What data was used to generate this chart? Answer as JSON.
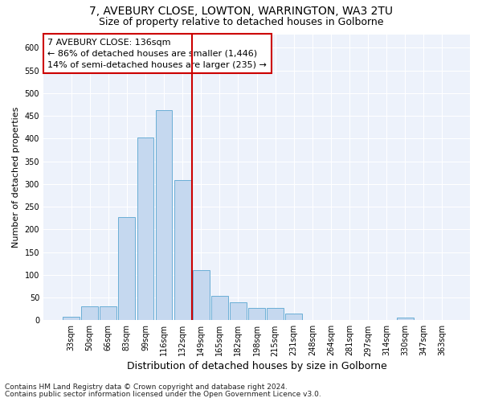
{
  "title1": "7, AVEBURY CLOSE, LOWTON, WARRINGTON, WA3 2TU",
  "title2": "Size of property relative to detached houses in Golborne",
  "xlabel": "Distribution of detached houses by size in Golborne",
  "ylabel": "Number of detached properties",
  "bar_labels": [
    "33sqm",
    "50sqm",
    "66sqm",
    "83sqm",
    "99sqm",
    "116sqm",
    "132sqm",
    "149sqm",
    "165sqm",
    "182sqm",
    "198sqm",
    "215sqm",
    "231sqm",
    "248sqm",
    "264sqm",
    "281sqm",
    "297sqm",
    "314sqm",
    "330sqm",
    "347sqm",
    "363sqm"
  ],
  "bar_values": [
    7,
    30,
    30,
    228,
    403,
    463,
    308,
    110,
    54,
    40,
    28,
    28,
    14,
    0,
    0,
    0,
    0,
    0,
    5,
    0,
    0
  ],
  "bar_color": "#c5d8ef",
  "bar_edgecolor": "#6aaed6",
  "vline_x": 6.5,
  "vline_color": "#cc0000",
  "annotation_line1": "7 AVEBURY CLOSE: 136sqm",
  "annotation_line2": "← 86% of detached houses are smaller (1,446)",
  "annotation_line3": "14% of semi-detached houses are larger (235) →",
  "annotation_box_color": "#cc0000",
  "ylim": [
    0,
    630
  ],
  "yticks": [
    0,
    50,
    100,
    150,
    200,
    250,
    300,
    350,
    400,
    450,
    500,
    550,
    600
  ],
  "footer1": "Contains HM Land Registry data © Crown copyright and database right 2024.",
  "footer2": "Contains public sector information licensed under the Open Government Licence v3.0.",
  "bg_color": "#edf2fb",
  "grid_color": "#ffffff",
  "fig_bg": "#ffffff",
  "title1_fontsize": 10,
  "title2_fontsize": 9,
  "xlabel_fontsize": 9,
  "ylabel_fontsize": 8,
  "annot_fontsize": 8,
  "tick_fontsize": 7,
  "footer_fontsize": 6.5
}
